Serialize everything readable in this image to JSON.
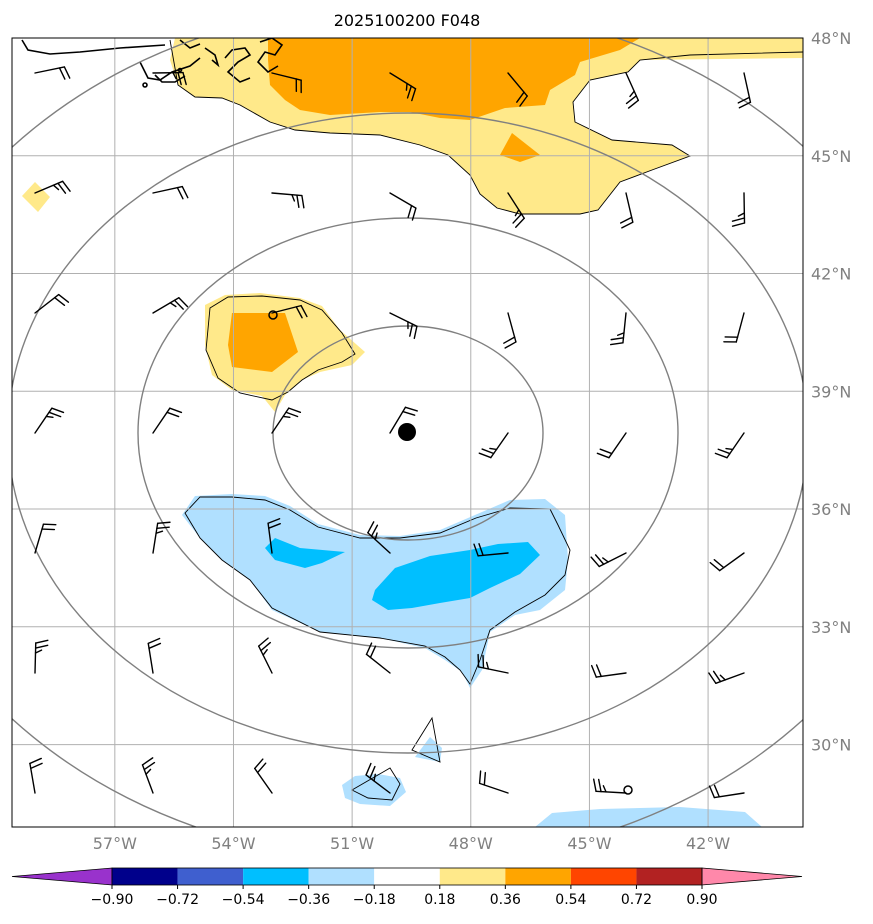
{
  "chart_data": {
    "type": "map_contourf",
    "title": "2025100200 F048",
    "lon_ticks": [
      "57°W",
      "54°W",
      "51°W",
      "48°W",
      "45°W",
      "42°W"
    ],
    "lat_ticks": [
      "48°N",
      "45°N",
      "42°N",
      "39°N",
      "36°N",
      "33°N",
      "30°N"
    ],
    "lon_range": [
      -59.6,
      -39.6
    ],
    "lat_range": [
      27.9,
      48.0
    ],
    "storm_center": {
      "lon": -49.4,
      "lat": 38.1
    },
    "colorbar": {
      "levels": [
        -0.9,
        -0.72,
        -0.54,
        -0.36,
        -0.18,
        0.18,
        0.36,
        0.54,
        0.72,
        0.9
      ],
      "tick_labels": [
        "−0.90",
        "−0.72",
        "−0.54",
        "−0.36",
        "−0.18",
        "0.18",
        "0.36",
        "0.54",
        "0.72",
        "0.90"
      ],
      "colors": [
        "#9932cc",
        "#00008b",
        "#3f5fcf",
        "#00bfff",
        "#b0e0ff",
        "#ffffff",
        "#ffe98a",
        "#ffa500",
        "#ff4500",
        "#b22222",
        "#ff88aa"
      ],
      "extend": "both"
    },
    "contour_fields": {
      "positive_anomaly_regions": [
        "north of 45°N between 54°W and 44°W",
        "near 53°W 40.5°N",
        "near 59°W 44°N"
      ],
      "negative_anomaly_regions": [
        "south of storm between 55°W and 45°W near 34.5°N",
        "near 49°W 30°N",
        "near 50.5°W 28.5°N",
        "south of 28.5°N near 45°W"
      ]
    },
    "range_rings": "concentric circles centred on storm",
    "wind_barbs": "regular grid, ~3° spacing"
  },
  "colors": {
    "ring": "#808080",
    "grid": "#b0b0b0",
    "marker": "#000000"
  }
}
